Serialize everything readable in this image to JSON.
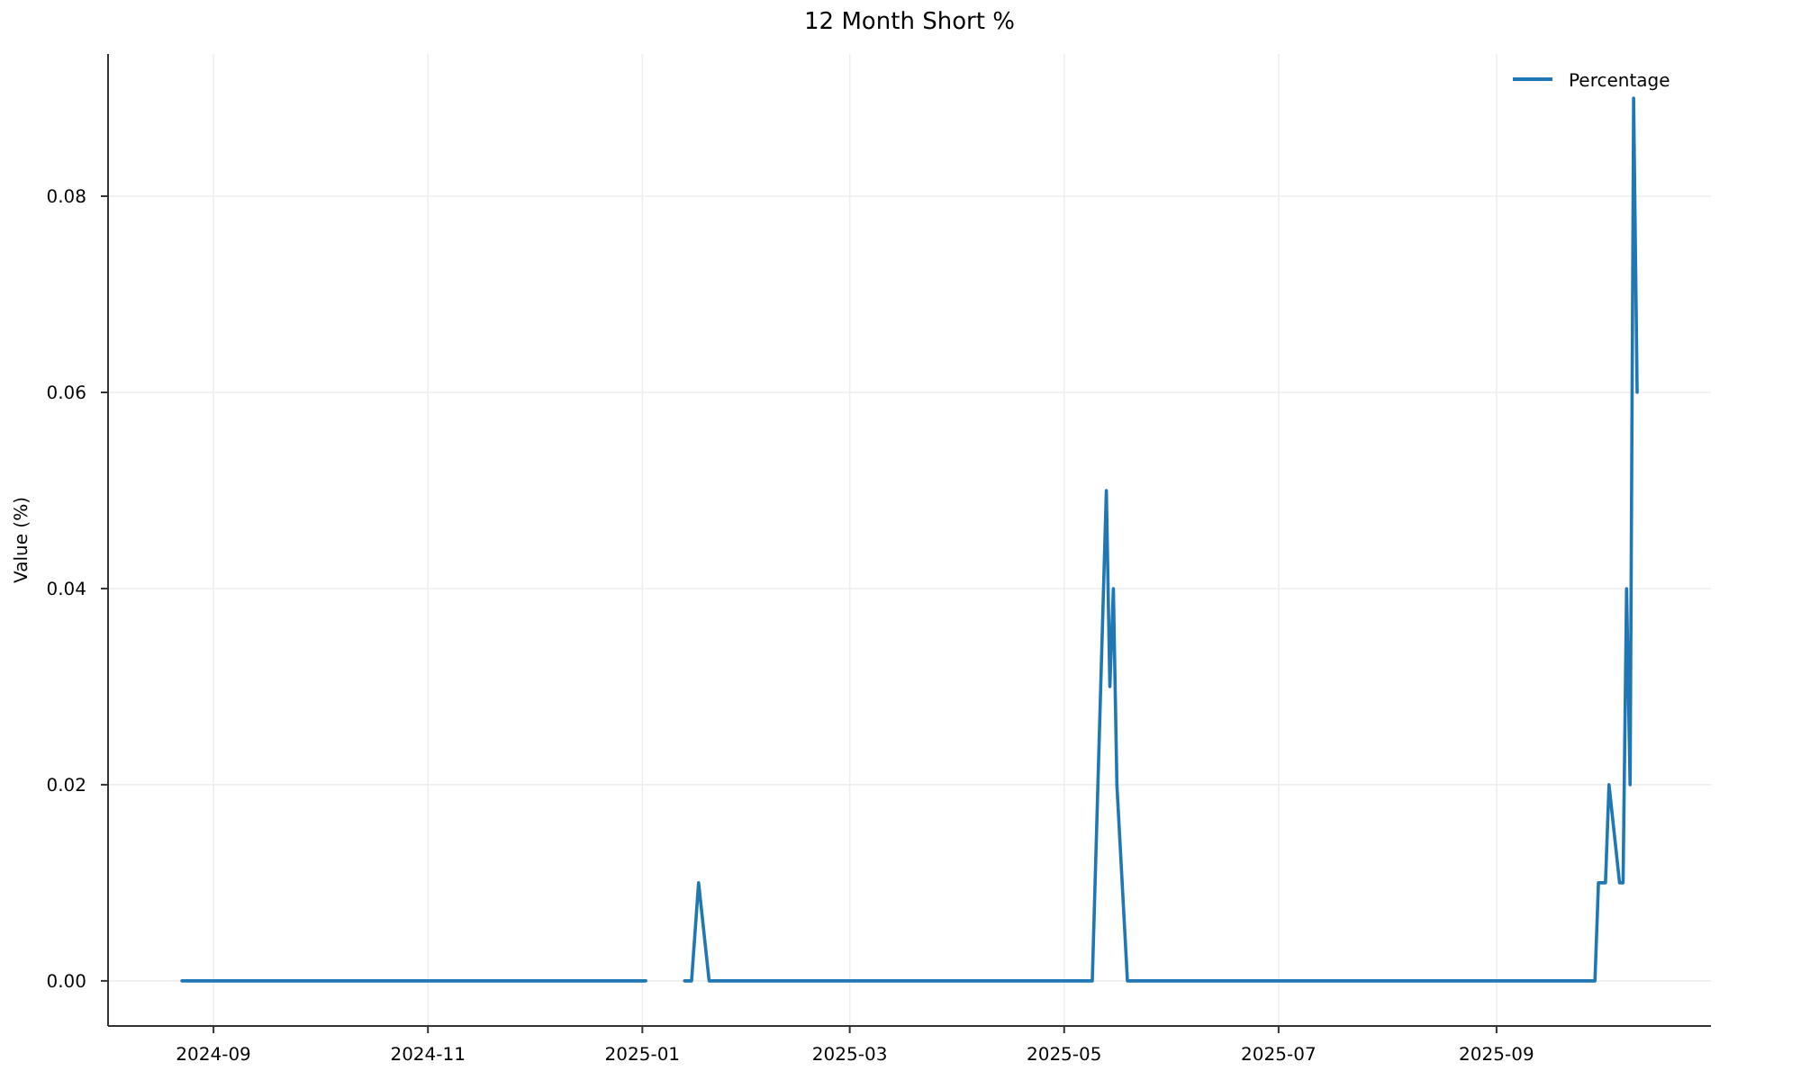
{
  "chart_data": {
    "type": "line",
    "title": "12 Month Short %",
    "ylabel": "Value (%)",
    "x": [
      "2024-08-23",
      "2025-01-02",
      "2025-01-08",
      "2025-01-13",
      "2025-01-15",
      "2025-01-17",
      "2025-01-20",
      "2025-05-09",
      "2025-05-13",
      "2025-05-14",
      "2025-05-15",
      "2025-05-16",
      "2025-05-19",
      "2025-09-29",
      "2025-09-30",
      "2025-10-02",
      "2025-10-03",
      "2025-10-06",
      "2025-10-07",
      "2025-10-08",
      "2025-10-09",
      "2025-10-10",
      "2025-10-11"
    ],
    "series": [
      {
        "name": "Percentage",
        "color": "#1f77b4",
        "values": [
          0,
          0,
          null,
          0,
          0,
          0.01,
          0,
          0,
          0.05,
          0.03,
          0.04,
          0.02,
          0,
          0,
          0.01,
          0.01,
          0.02,
          0.01,
          0.01,
          0.04,
          0.02,
          0.09,
          0.06
        ]
      }
    ],
    "xlim": [
      "2024-08-02",
      "2025-11-01"
    ],
    "xticks": [
      {
        "value": "2024-09-01",
        "label": "2024-09"
      },
      {
        "value": "2024-11-01",
        "label": "2024-11"
      },
      {
        "value": "2025-01-01",
        "label": "2025-01"
      },
      {
        "value": "2025-03-01",
        "label": "2025-03"
      },
      {
        "value": "2025-05-01",
        "label": "2025-05"
      },
      {
        "value": "2025-07-01",
        "label": "2025-07"
      },
      {
        "value": "2025-09-01",
        "label": "2025-09"
      }
    ],
    "ylim": [
      -0.0046,
      0.0945
    ],
    "yticks": [
      {
        "value": 0,
        "label": "0.00"
      },
      {
        "value": 0.02,
        "label": "0.02"
      },
      {
        "value": 0.04,
        "label": "0.04"
      },
      {
        "value": 0.06,
        "label": "0.06"
      },
      {
        "value": 0.08,
        "label": "0.08"
      }
    ],
    "grid": true,
    "legend": "top right",
    "marker": "none",
    "line_style": "solid"
  }
}
